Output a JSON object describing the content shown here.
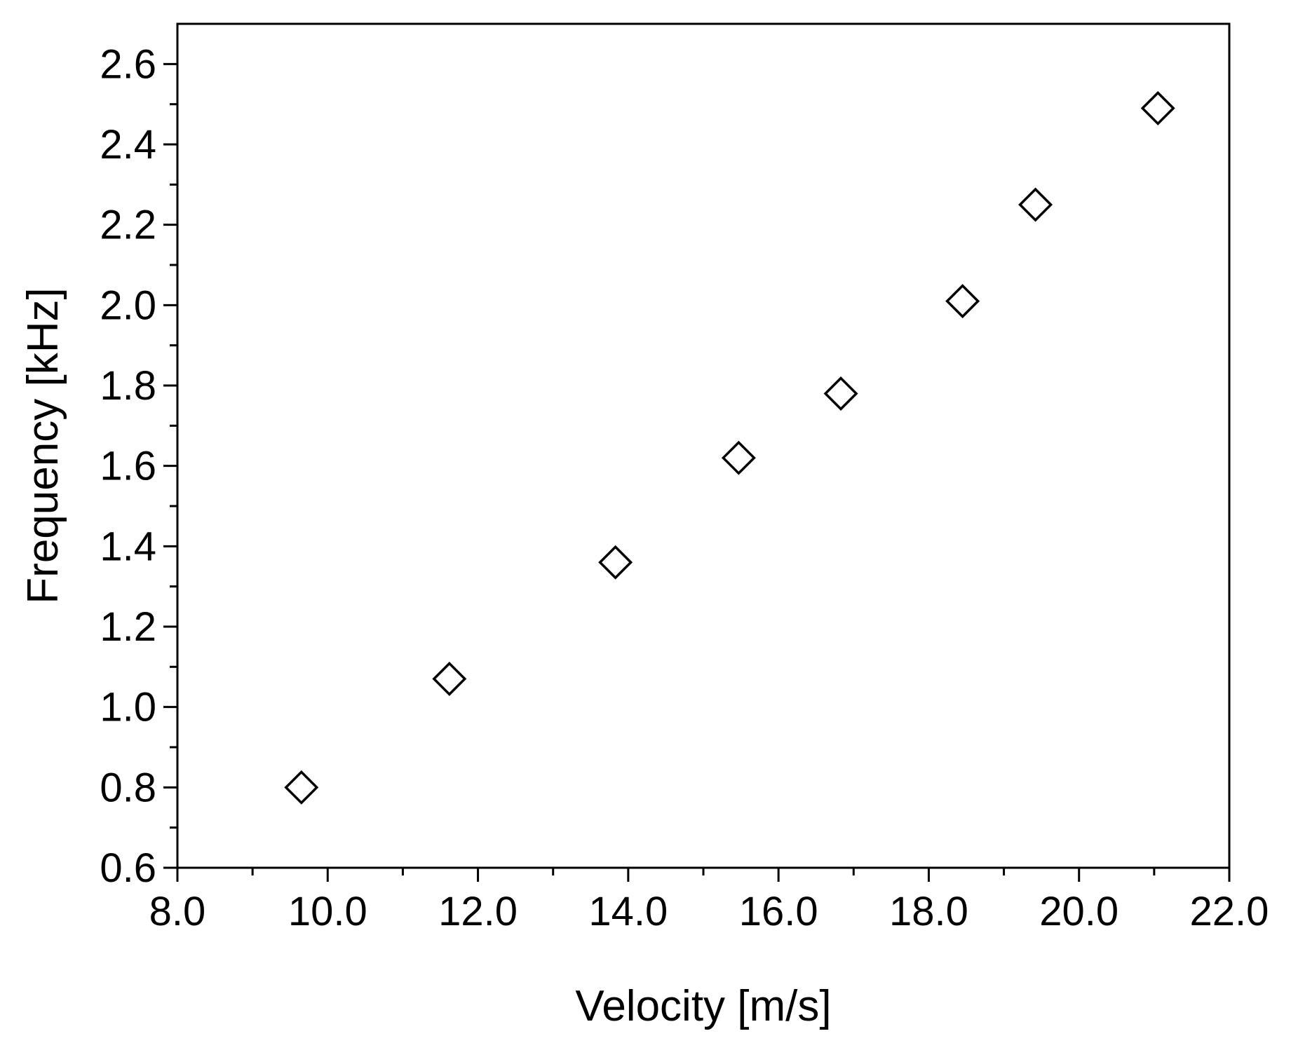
{
  "chart_data": {
    "type": "scatter",
    "title": "",
    "xlabel": "Velocity [m/s]",
    "ylabel": "Frequency [kHz]",
    "xlim": [
      8.0,
      22.0
    ],
    "ylim": [
      0.6,
      2.7
    ],
    "x_ticks": [
      8.0,
      10.0,
      12.0,
      14.0,
      16.0,
      18.0,
      20.0,
      22.0
    ],
    "x_tick_labels": [
      "8.0",
      "10.0",
      "12.0",
      "14.0",
      "16.0",
      "18.0",
      "20.0",
      "22.0"
    ],
    "y_ticks": [
      0.6,
      0.8,
      1.0,
      1.2,
      1.4,
      1.6,
      1.8,
      2.0,
      2.2,
      2.4,
      2.6
    ],
    "y_tick_labels": [
      "0.6",
      "0.8",
      "1.0",
      "1.2",
      "1.4",
      "1.6",
      "1.8",
      "2.0",
      "2.2",
      "2.4",
      "2.6"
    ],
    "grid": false,
    "marker": "open-diamond",
    "colors": {
      "marker": "#000000",
      "axis": "#000000"
    },
    "series": [
      {
        "name": "Frequency",
        "x": [
          9.65,
          11.62,
          13.83,
          15.47,
          16.83,
          18.45,
          19.42,
          21.05
        ],
        "y": [
          0.8,
          1.07,
          1.36,
          1.62,
          1.78,
          2.01,
          2.25,
          2.49
        ]
      }
    ]
  }
}
